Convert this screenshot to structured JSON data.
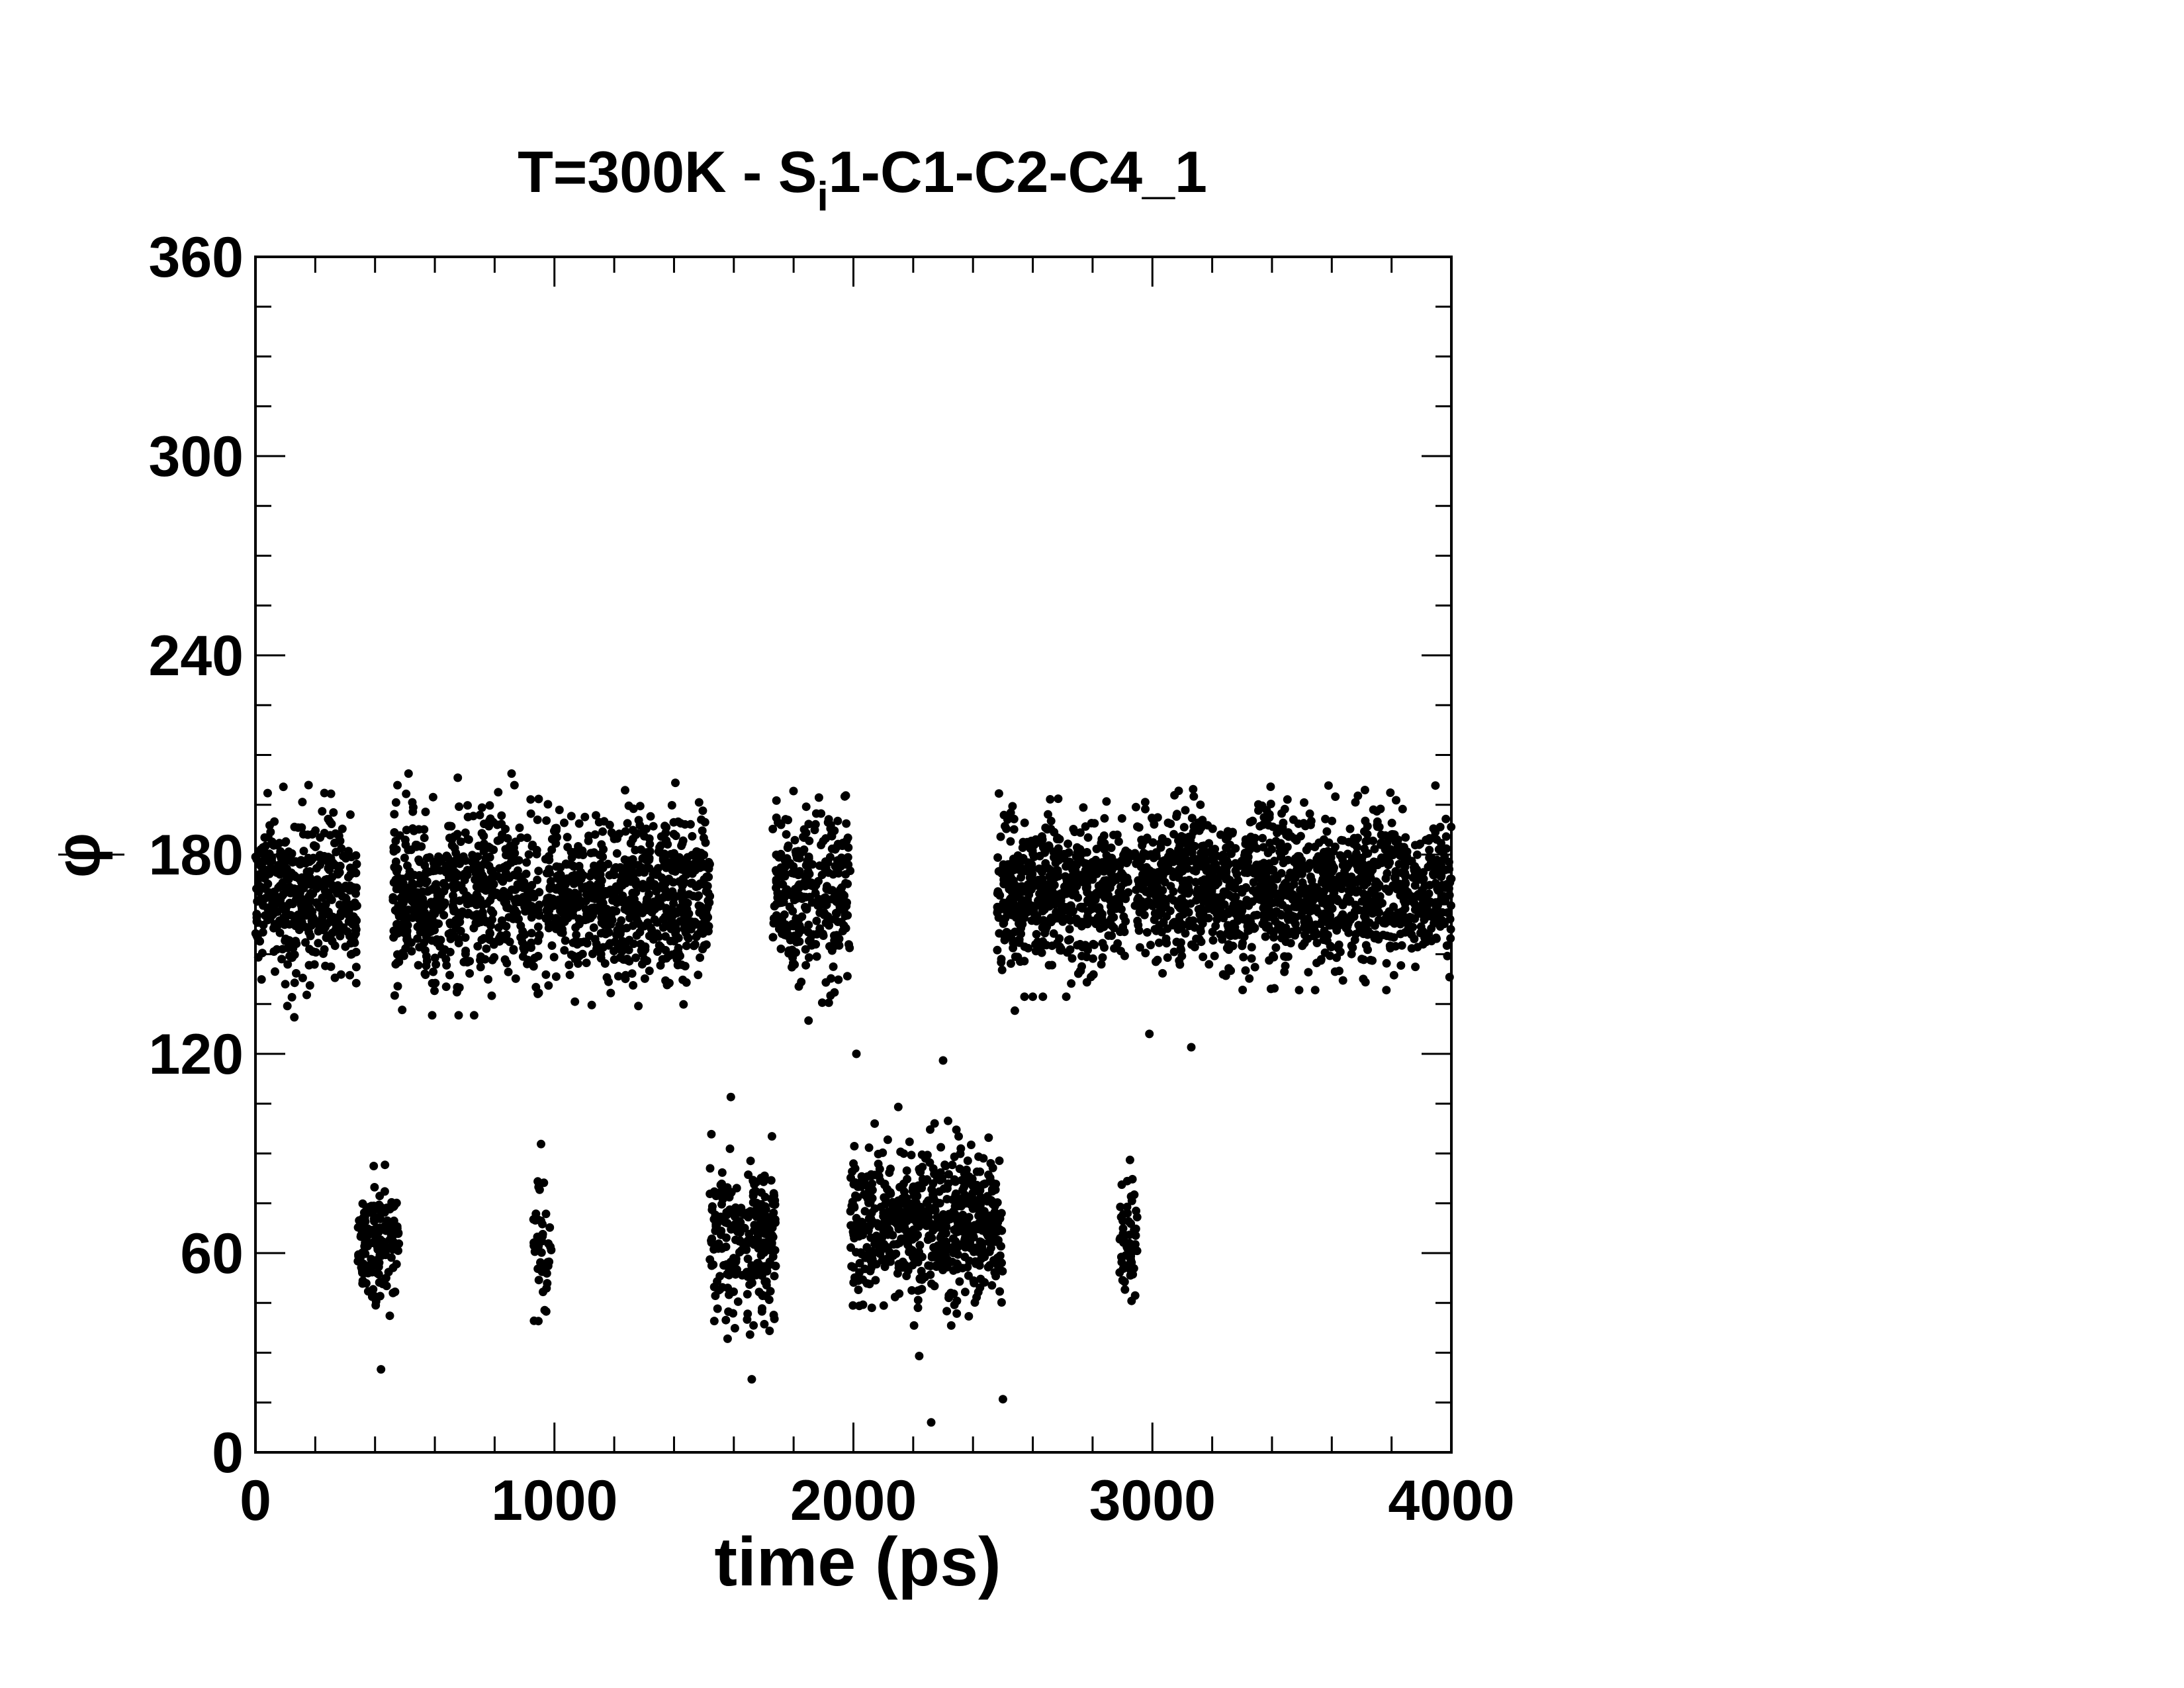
{
  "chart_data": {
    "type": "scatter",
    "title": {
      "prefix": "T=300K  -  S",
      "subscript": "i",
      "suffix": "1-C1-C2-C4_1"
    },
    "xlabel": "time (ps)",
    "ylabel": "φ",
    "xlim": [
      0,
      4000
    ],
    "ylim": [
      0,
      360
    ],
    "xticks": [
      0,
      1000,
      2000,
      3000,
      4000
    ],
    "yticks": [
      0,
      60,
      120,
      180,
      240,
      300,
      360
    ],
    "x_minor_step": 200,
    "y_minor_step": 15,
    "grid": false,
    "legend": "none",
    "marker_color": "#000000",
    "clusters": [
      {
        "x_range": [
          0,
          340
        ],
        "y_center": 168,
        "y_spread": 12,
        "count": 420
      },
      {
        "x_range": [
          340,
          480
        ],
        "y_center": 63,
        "y_spread": 9,
        "count": 150
      },
      {
        "x_range": [
          460,
          950
        ],
        "y_center": 168,
        "y_spread": 13,
        "count": 600
      },
      {
        "x_range": [
          930,
          990
        ],
        "y_center": 62,
        "y_spread": 12,
        "count": 45
      },
      {
        "x_range": [
          970,
          1520
        ],
        "y_center": 168,
        "y_spread": 12,
        "count": 700
      },
      {
        "x_range": [
          1520,
          1740
        ],
        "y_center": 65,
        "y_spread": 11,
        "count": 260
      },
      {
        "x_range": [
          1730,
          1990
        ],
        "y_center": 168,
        "y_spread": 12,
        "count": 300
      },
      {
        "x_range": [
          1990,
          2500
        ],
        "y_center": 69,
        "y_spread": 11,
        "count": 650
      },
      {
        "x_range": [
          2480,
          2920
        ],
        "y_center": 168,
        "y_spread": 11,
        "count": 560
      },
      {
        "x_range": [
          2890,
          2950
        ],
        "y_center": 65,
        "y_spread": 10,
        "count": 55
      },
      {
        "x_range": [
          2940,
          4000
        ],
        "y_center": 170,
        "y_spread": 11,
        "count": 1350
      }
    ],
    "outliers": [
      {
        "x": 2010,
        "y": 120
      },
      {
        "x": 2300,
        "y": 118
      },
      {
        "x": 2990,
        "y": 126
      },
      {
        "x": 3130,
        "y": 122
      },
      {
        "x": 2540,
        "y": 133
      },
      {
        "x": 130,
        "y": 131
      },
      {
        "x": 1850,
        "y": 130
      },
      {
        "x": 420,
        "y": 25
      },
      {
        "x": 1660,
        "y": 22
      },
      {
        "x": 2500,
        "y": 16
      },
      {
        "x": 2260,
        "y": 9
      },
      {
        "x": 2220,
        "y": 29
      },
      {
        "x": 1590,
        "y": 107
      },
      {
        "x": 2150,
        "y": 104
      }
    ]
  }
}
